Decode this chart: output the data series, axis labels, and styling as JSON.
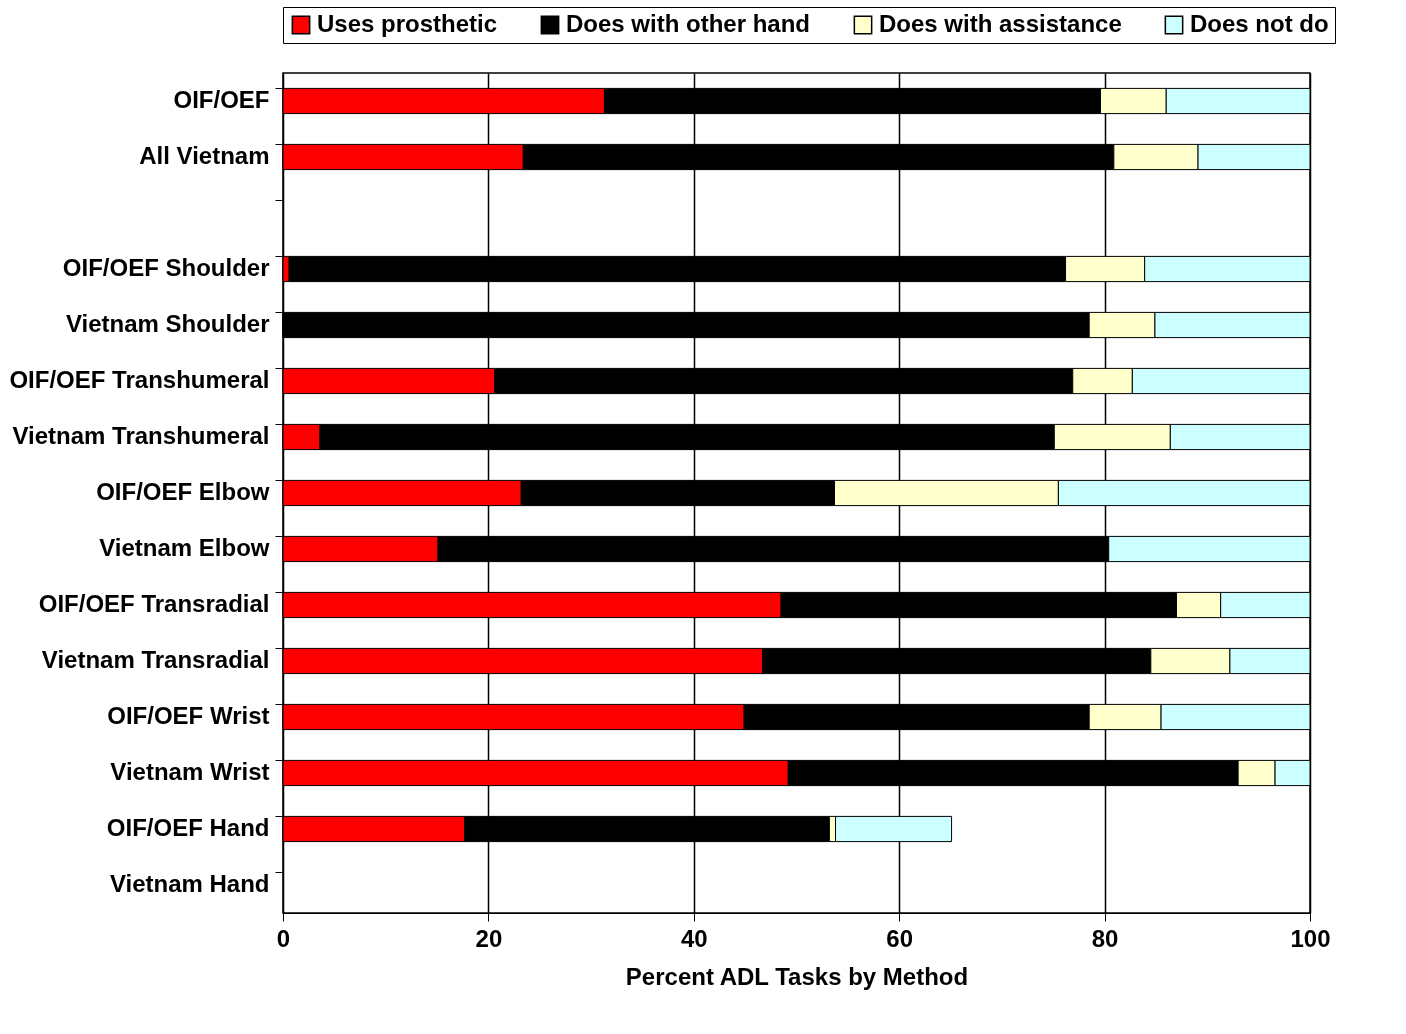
{
  "chart_data": {
    "type": "bar",
    "orientation": "horizontal",
    "stacked": true,
    "xlabel": "Percent ADL Tasks by Method",
    "categories": [
      "OIF/OEF",
      "All Vietnam",
      null,
      "OIF/OEF Shoulder",
      "Vietnam Shoulder",
      "OIF/OEF Transhumeral",
      "Vietnam Transhumeral",
      "OIF/OEF Elbow",
      "Vietnam Elbow",
      "OIF/OEF Transradial",
      "Vietnam Transradial",
      "OIF/OEF Wrist",
      "Vietnam Wrist",
      "OIF/OEF Hand",
      "Vietnam Hand"
    ],
    "series": [
      {
        "name": "Uses prosthetic",
        "color": "#ff0000",
        "values": [
          31.3,
          23.4,
          null,
          0.6,
          0,
          20.6,
          3.6,
          23.2,
          15.1,
          48.5,
          46.7,
          44.9,
          49.2,
          17.7,
          null
        ]
      },
      {
        "name": "Does with other hand",
        "color": "#000000",
        "values": [
          48.3,
          57.5,
          null,
          75.6,
          78.5,
          56.3,
          71.5,
          30.5,
          65.3,
          38.5,
          37.8,
          33.6,
          43.8,
          35.5,
          null
        ]
      },
      {
        "name": "Does with assistance",
        "color": "#ffffcc",
        "values": [
          6.4,
          8.2,
          null,
          7.7,
          6.4,
          5.8,
          11.3,
          21.8,
          0,
          4.3,
          7.7,
          7.0,
          3.6,
          0.6,
          null
        ]
      },
      {
        "name": "Does not do",
        "color": "#ccffff",
        "values": [
          14.0,
          10.9,
          null,
          16.1,
          15.1,
          17.3,
          13.6,
          24.5,
          19.6,
          8.7,
          7.8,
          14.5,
          3.4,
          11.3,
          null
        ]
      }
    ],
    "xlim": [
      0,
      100
    ],
    "xticks": [
      0,
      20,
      40,
      60,
      80,
      100
    ],
    "grid": "x",
    "legend": "top"
  }
}
